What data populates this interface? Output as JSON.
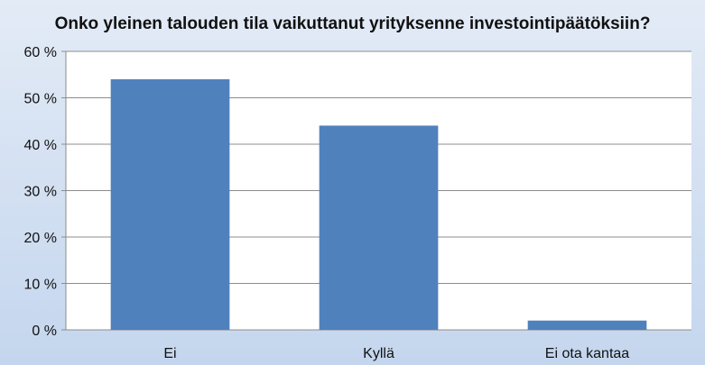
{
  "chart_data": {
    "type": "bar",
    "title": "Onko yleinen talouden tila vaikuttanut yrityksenne investointipäätöksiin?",
    "categories": [
      "Ei",
      "Kyllä",
      "Ei ota kantaa"
    ],
    "values": [
      54,
      44,
      2
    ],
    "unit": "%",
    "ylim": [
      0,
      60
    ],
    "yticks": [
      0,
      10,
      20,
      30,
      40,
      50,
      60
    ],
    "ytick_labels": [
      "0 %",
      "10 %",
      "20 %",
      "30 %",
      "40 %",
      "50 %",
      "60 %"
    ],
    "grid": true,
    "legend": "none",
    "bar_color": "#4f81bd",
    "plot_background": "#ffffff",
    "grid_color": "#8c8c8c"
  }
}
